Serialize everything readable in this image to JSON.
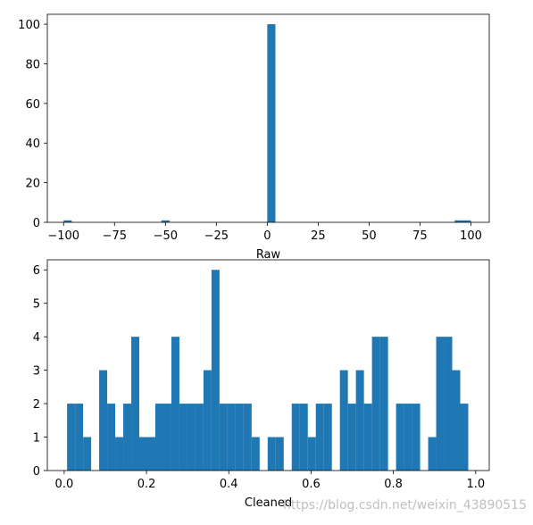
{
  "chart_data": [
    {
      "type": "histogram",
      "xlabel": "Raw",
      "color": "#1f77b4",
      "bins": [
        -100,
        -96,
        -92,
        -88,
        -84,
        -80,
        -76,
        -72,
        -68,
        -64,
        -60,
        -56,
        -52,
        -48,
        -44,
        -40,
        -36,
        -32,
        -28,
        -24,
        -20,
        -16,
        -12,
        -8,
        -4,
        0,
        4,
        8,
        12,
        16,
        20,
        24,
        28,
        32,
        36,
        40,
        44,
        48,
        52,
        56,
        60,
        64,
        68,
        72,
        76,
        80,
        84,
        88,
        92,
        96,
        100
      ],
      "counts": [
        1,
        0,
        0,
        0,
        0,
        0,
        0,
        0,
        0,
        0,
        0,
        0,
        1,
        0,
        0,
        0,
        0,
        0,
        0,
        0,
        0,
        0,
        0,
        0,
        0,
        100,
        0,
        0,
        0,
        0,
        0,
        0,
        0,
        0,
        0,
        0,
        0,
        0,
        0,
        0,
        0,
        0,
        0,
        0,
        0,
        0,
        0,
        0,
        1,
        1
      ],
      "xlim": [
        -108,
        109
      ],
      "ylim": [
        0,
        105
      ],
      "xticks": [
        {
          "value": -100,
          "label": "−100"
        },
        {
          "value": -75,
          "label": "−75"
        },
        {
          "value": -50,
          "label": "−50"
        },
        {
          "value": -25,
          "label": "−25"
        },
        0,
        25,
        50,
        75,
        100
      ],
      "yticks": [
        0,
        20,
        40,
        60,
        80,
        100
      ]
    },
    {
      "type": "histogram",
      "xlabel": "Cleaned",
      "color": "#1f77b4",
      "bins": [
        0.007,
        0.0265,
        0.046,
        0.0655,
        0.085,
        0.1045,
        0.124,
        0.1435,
        0.163,
        0.1825,
        0.202,
        0.2215,
        0.241,
        0.2605,
        0.28,
        0.2995,
        0.319,
        0.3385,
        0.358,
        0.3775,
        0.397,
        0.4165,
        0.436,
        0.4555,
        0.475,
        0.4945,
        0.514,
        0.5335,
        0.553,
        0.5725,
        0.592,
        0.6115,
        0.631,
        0.6505,
        0.67,
        0.6895,
        0.709,
        0.7285,
        0.748,
        0.7675,
        0.787,
        0.8065,
        0.826,
        0.8455,
        0.865,
        0.8845,
        0.904,
        0.9235,
        0.943,
        0.9625,
        0.982
      ],
      "counts": [
        2,
        2,
        1,
        0,
        3,
        2,
        1,
        2,
        4,
        1,
        1,
        2,
        2,
        4,
        2,
        2,
        2,
        3,
        6,
        2,
        2,
        2,
        2,
        1,
        0,
        1,
        1,
        0,
        2,
        2,
        1,
        2,
        2,
        0,
        3,
        2,
        3,
        2,
        4,
        4,
        0,
        2,
        2,
        2,
        0,
        1,
        4,
        4,
        3,
        2
      ],
      "xlim": [
        -0.041,
        1.033
      ],
      "ylim": [
        0,
        6.3
      ],
      "xticks": [
        {
          "value": 0,
          "label": "0.0"
        },
        0.2,
        0.4,
        0.6,
        0.8,
        {
          "value": 1,
          "label": "1.0"
        }
      ],
      "yticks": [
        0,
        1,
        2,
        3,
        4,
        5,
        6
      ],
      "watermark": "https://blog.csdn.net/weixin_43890515"
    }
  ]
}
